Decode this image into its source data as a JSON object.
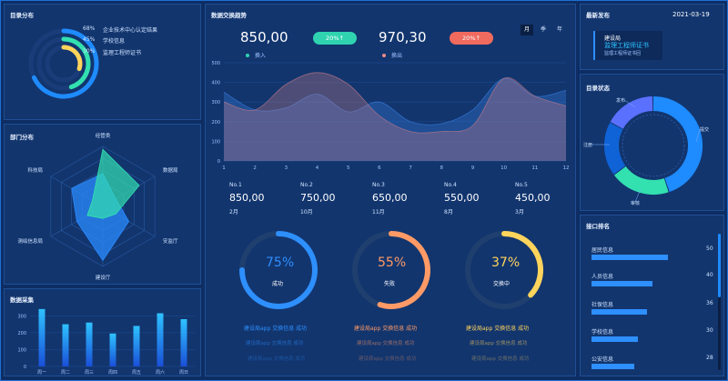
{
  "catalog_dist": {
    "title": "目录分布",
    "items": [
      {
        "pct": "68%",
        "label": "企业技术中心认定结果",
        "value": 68,
        "color": "#1e8bff"
      },
      {
        "pct": "45%",
        "label": "学校信息",
        "value": 45,
        "color": "#33e0b0"
      },
      {
        "pct": "30%",
        "label": "监理工程师证书",
        "value": 30,
        "color": "#ffd45c"
      }
    ]
  },
  "dept_dist": {
    "title": "部门分布",
    "axes": [
      "经管类",
      "数据局",
      "安监厅",
      "建设厅",
      "测绘信息局",
      "科技局"
    ]
  },
  "data_collect": {
    "title": "数据采集",
    "chart_data": {
      "type": "bar",
      "categories": [
        "周一",
        "周二",
        "周三",
        "周四",
        "周五",
        "周六",
        "周日"
      ],
      "values": [
        340,
        250,
        260,
        195,
        240,
        315,
        280
      ],
      "ylim": [
        0,
        350
      ],
      "yticks": [
        "0",
        "100",
        "200",
        "300"
      ]
    }
  },
  "exchange_trend": {
    "title": "数据交换趋势",
    "value_in": "850,00",
    "pill_in": "20%↑",
    "legend_in": "换入",
    "value_out": "970,30",
    "pill_out": "20%↑",
    "legend_out": "换出",
    "tabs": [
      "月",
      "季",
      "年"
    ],
    "chart_data": {
      "type": "area",
      "x": [
        1,
        2,
        3,
        4,
        5,
        6,
        7,
        8,
        9,
        10,
        11,
        12
      ],
      "ylim": [
        0,
        500
      ],
      "yticks": [
        "0",
        "100",
        "200",
        "300",
        "400",
        "500"
      ],
      "series": [
        {
          "name": "换入",
          "values": [
            350,
            260,
            270,
            340,
            250,
            300,
            200,
            190,
            260,
            420,
            330,
            360
          ]
        },
        {
          "name": "换出",
          "values": [
            300,
            260,
            390,
            450,
            390,
            230,
            150,
            150,
            180,
            420,
            330,
            280
          ]
        }
      ]
    },
    "ranks": [
      {
        "no": "No.1",
        "value": "850,00",
        "month": "2月"
      },
      {
        "no": "No.2",
        "value": "750,00",
        "month": "10月"
      },
      {
        "no": "No.3",
        "value": "650,00",
        "month": "11月"
      },
      {
        "no": "No.4",
        "value": "550,00",
        "month": "8月"
      },
      {
        "no": "No.5",
        "value": "450,00",
        "month": "3月"
      }
    ],
    "gauges": [
      {
        "pct": "75%",
        "label": "成功",
        "value": 0.75,
        "color": "#2e8fff",
        "lines": [
          "建设局app 交换信息 成功",
          "建设局app 交换信息 成功",
          "建设局app 交换信息 成功"
        ]
      },
      {
        "pct": "55%",
        "label": "失败",
        "value": 0.55,
        "color": "#ff9a66",
        "lines": [
          "建设局app 交换信息 成功",
          "建设局app 交换信息 成功",
          "建设局app 交换信息 成功"
        ]
      },
      {
        "pct": "37%",
        "label": "交换中",
        "value": 0.37,
        "color": "#ffd45c",
        "lines": [
          "建设局app 交换信息 成功",
          "建设局app 交换信息 成功",
          "建设局app 交换信息 成功"
        ]
      }
    ]
  },
  "latest": {
    "title": "最新发布",
    "date": "2021-03-19",
    "org": "建设局",
    "headline": "监理工程师证书",
    "sub": "监理工程师证书回"
  },
  "catalog_status": {
    "title": "目录状态",
    "segments": [
      {
        "label": "提交",
        "value": 45,
        "color": "#1e8bff"
      },
      {
        "label": "审核",
        "value": 20,
        "color": "#33e0b0"
      },
      {
        "label": "注册",
        "value": 18,
        "color": "#0f63d6"
      },
      {
        "label": "发布",
        "value": 17,
        "color": "#5a70ff"
      }
    ]
  },
  "api_rank": {
    "title": "接口排名",
    "items": [
      {
        "label": "居民信息",
        "value": 50
      },
      {
        "label": "人员信息",
        "value": 40
      },
      {
        "label": "社保信息",
        "value": 36
      },
      {
        "label": "学校信息",
        "value": 30
      },
      {
        "label": "公安信息",
        "value": 28
      }
    ]
  }
}
